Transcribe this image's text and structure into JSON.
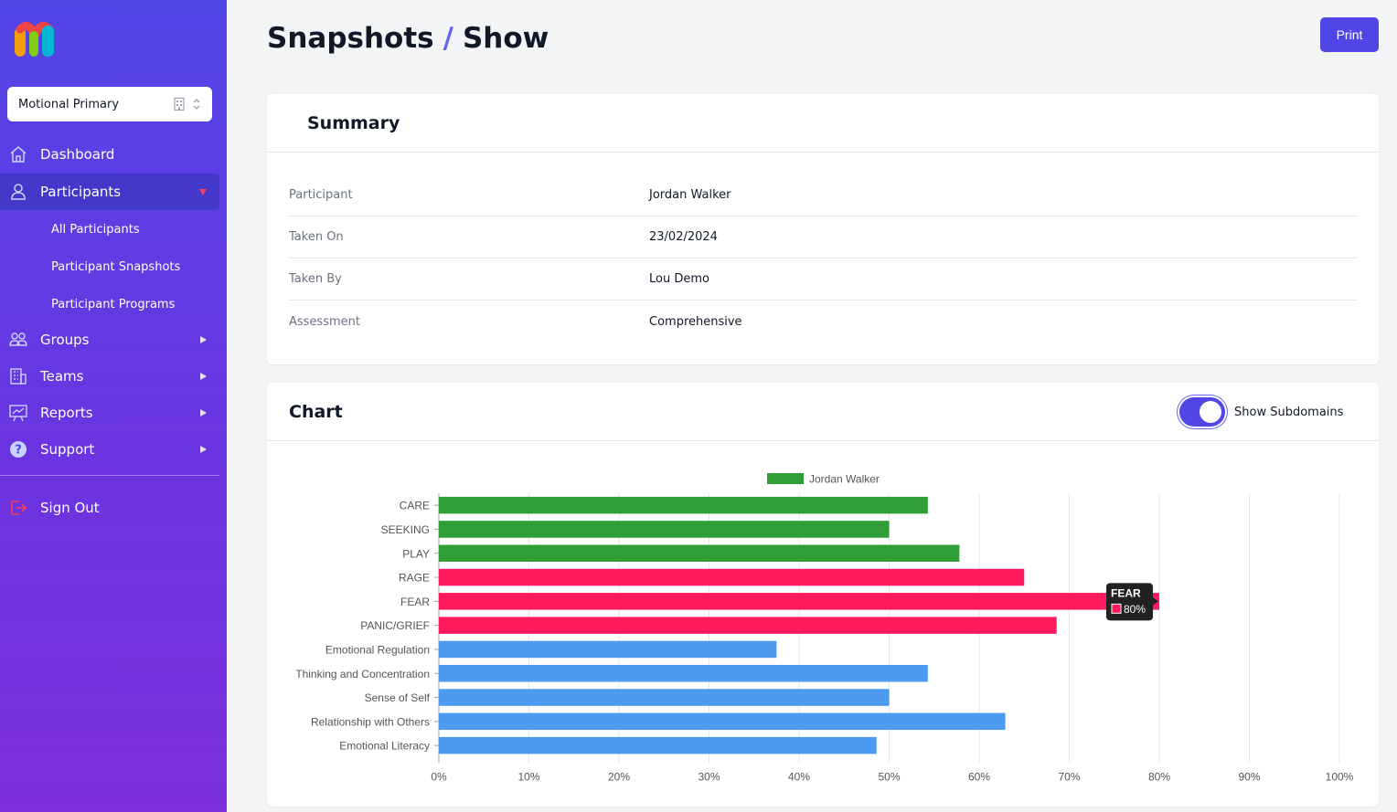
{
  "sidebar": {
    "org_select": {
      "value": "Motional Primary"
    },
    "nav": [
      {
        "label": "Dashboard",
        "icon": "home-icon"
      },
      {
        "label": "Participants",
        "icon": "user-icon"
      },
      {
        "label": "Groups",
        "icon": "users-icon"
      },
      {
        "label": "Teams",
        "icon": "building-icon"
      },
      {
        "label": "Reports",
        "icon": "presentation-chart-icon"
      },
      {
        "label": "Support",
        "icon": "question-circle-icon"
      },
      {
        "label": "Sign Out",
        "icon": "sign-out-icon"
      }
    ],
    "participants_sub": [
      "All Participants",
      "Participant Snapshots",
      "Participant Programs"
    ]
  },
  "header": {
    "section": "Snapshots",
    "separator": "/",
    "page": "Show",
    "print_label": "Print"
  },
  "summary": {
    "title": "Summary",
    "rows": [
      {
        "label": "Participant",
        "value": "Jordan Walker"
      },
      {
        "label": "Taken On",
        "value": "23/02/2024"
      },
      {
        "label": "Taken By",
        "value": "Lou Demo"
      },
      {
        "label": "Assessment",
        "value": "Comprehensive"
      }
    ]
  },
  "chart_section": {
    "title": "Chart",
    "toggle_label": "Show Subdomains",
    "toggle_on": true
  },
  "colors": {
    "accent": "#4f46e5",
    "green": "#2f9e37",
    "pink": "#ff1a5e",
    "blue": "#4c9bf0"
  },
  "chart_data": {
    "type": "bar",
    "orientation": "horizontal",
    "legend": {
      "label": "Jordan Walker",
      "position": "top"
    },
    "categories": [
      "CARE",
      "SEEKING",
      "PLAY",
      "RAGE",
      "FEAR",
      "PANIC/GRIEF",
      "Emotional Regulation",
      "Thinking and Concentration",
      "Sense of Self",
      "Relationship with Others",
      "Emotional Literacy"
    ],
    "series": [
      {
        "name": "Jordan Walker",
        "values": [
          54.3,
          50,
          57.8,
          65,
          80,
          68.6,
          37.5,
          54.3,
          50,
          62.9,
          48.6
        ]
      }
    ],
    "bar_colors": [
      "#2f9e37",
      "#2f9e37",
      "#2f9e37",
      "#ff1a5e",
      "#ff1a5e",
      "#ff1a5e",
      "#4c9bf0",
      "#4c9bf0",
      "#4c9bf0",
      "#4c9bf0",
      "#4c9bf0"
    ],
    "x_ticks": [
      "0%",
      "10%",
      "20%",
      "30%",
      "40%",
      "50%",
      "60%",
      "70%",
      "80%",
      "90%",
      "100%"
    ],
    "xlim": [
      0,
      100
    ],
    "grid": true,
    "tooltip": {
      "category": "FEAR",
      "value_label": "80%"
    }
  }
}
